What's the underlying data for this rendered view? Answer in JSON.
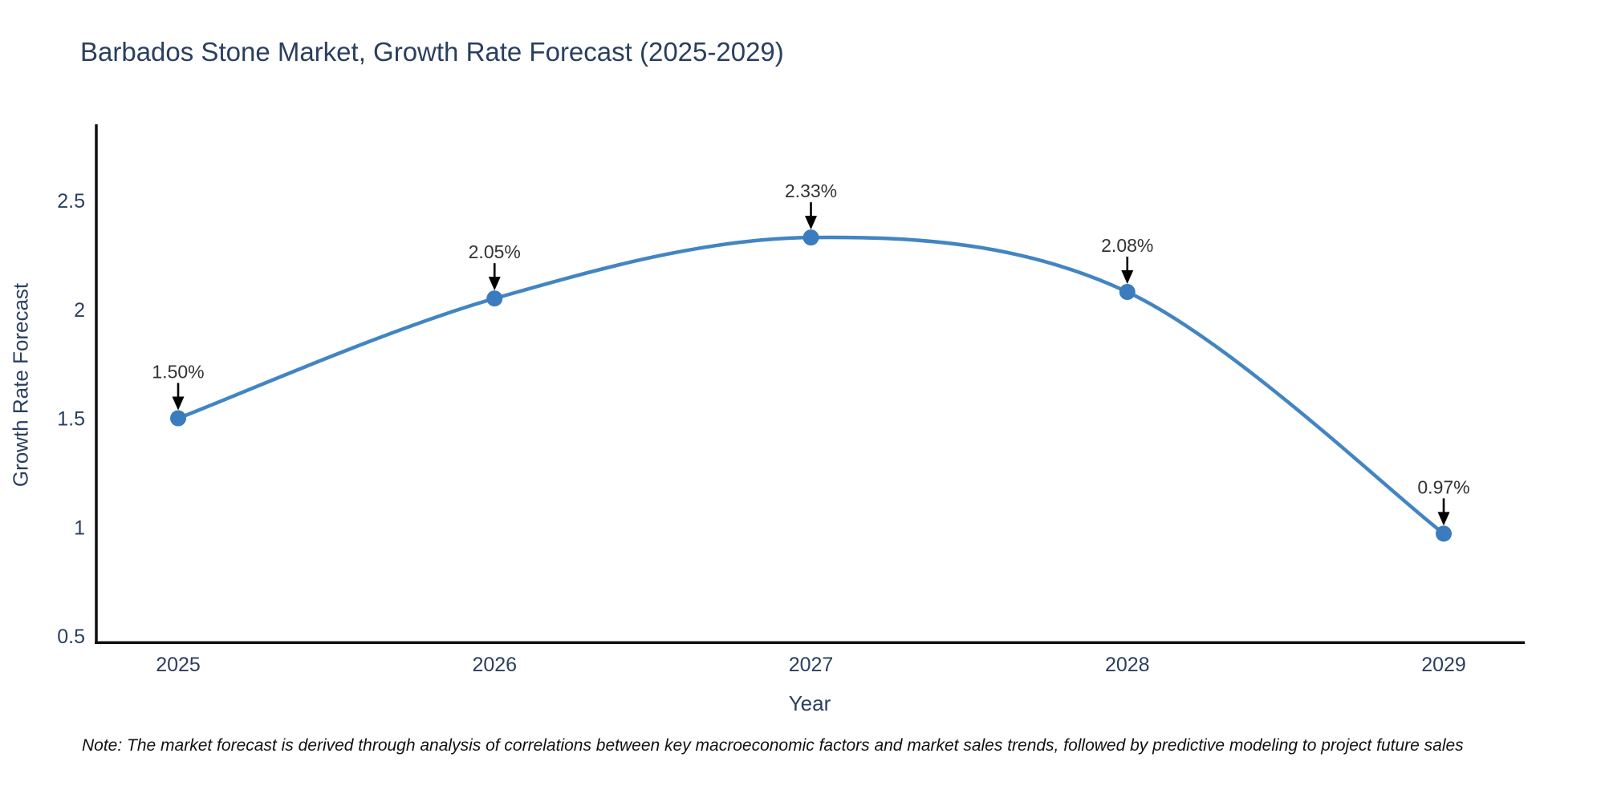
{
  "chart": {
    "title": "Barbados Stone Market, Growth Rate Forecast (2025-2029)",
    "xlabel": "Year",
    "ylabel": "Growth Rate Forecast",
    "note": "Note: The market forecast is derived through analysis of correlations between key macroeconomic factors and market sales trends, followed by predictive modeling to project future sales"
  },
  "chart_data": {
    "type": "line",
    "title": "Barbados Stone Market, Growth Rate Forecast (2025-2029)",
    "xlabel": "Year",
    "ylabel": "Growth Rate Forecast",
    "categories": [
      "2025",
      "2026",
      "2027",
      "2028",
      "2029"
    ],
    "series": [
      {
        "name": "Growth Rate Forecast",
        "values": [
          1.5,
          2.05,
          2.33,
          2.08,
          0.97
        ]
      }
    ],
    "data_labels": [
      "1.50%",
      "2.05%",
      "2.33%",
      "2.08%",
      "0.97%"
    ],
    "yticks": [
      "0.5",
      "1",
      "1.5",
      "2",
      "2.5"
    ],
    "ylim": [
      0.47,
      2.85
    ],
    "xlim_categories_padding": 0.26,
    "grid": false,
    "legend": false,
    "line_shape": "spline",
    "annotations_have_arrows": true,
    "colors": {
      "line": "#4285c2",
      "marker": "#3a7cbe",
      "axis": "#111111",
      "tick_text": "#2a3f5f",
      "annotation_text": "#333333",
      "annotation_arrow": "#000000",
      "background": "#ffffff"
    }
  }
}
